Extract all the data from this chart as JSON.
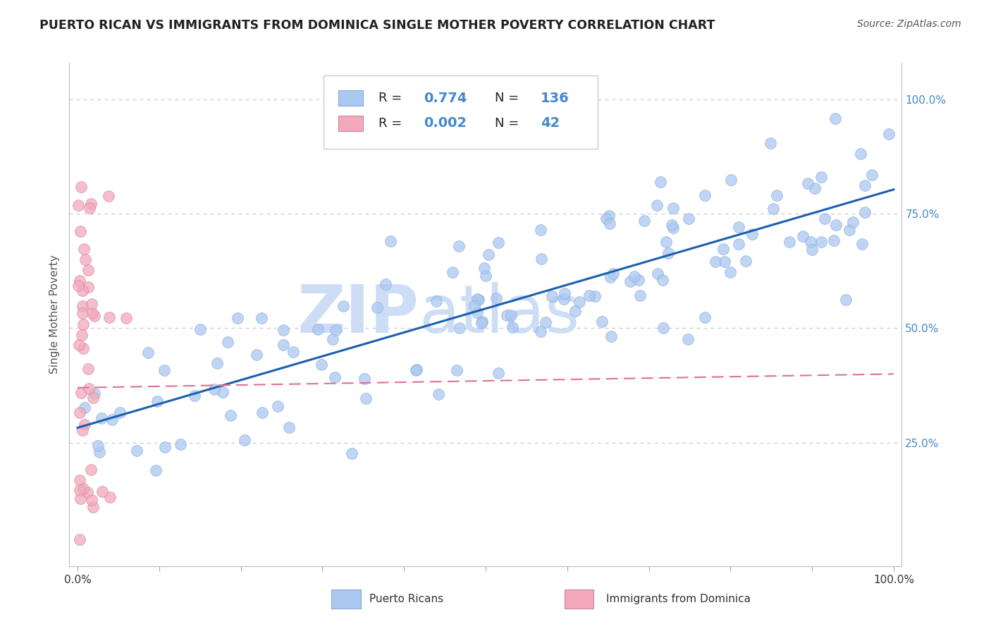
{
  "title": "PUERTO RICAN VS IMMIGRANTS FROM DOMINICA SINGLE MOTHER POVERTY CORRELATION CHART",
  "source": "Source: ZipAtlas.com",
  "ylabel": "Single Mother Poverty",
  "legend_labels": [
    "Puerto Ricans",
    "Immigrants from Dominica"
  ],
  "R_blue": 0.774,
  "N_blue": 136,
  "R_pink": 0.002,
  "N_pink": 42,
  "blue_color": "#aac8f0",
  "pink_color": "#f4a8bc",
  "blue_line_color": "#1a5fb0",
  "pink_line_color": "#e07090",
  "watermark_color": "#ccddf5",
  "grid_color": "#cccccc",
  "ytick_color": "#4488cc",
  "title_color": "#222222",
  "source_color": "#555555",
  "label_color": "#555555"
}
